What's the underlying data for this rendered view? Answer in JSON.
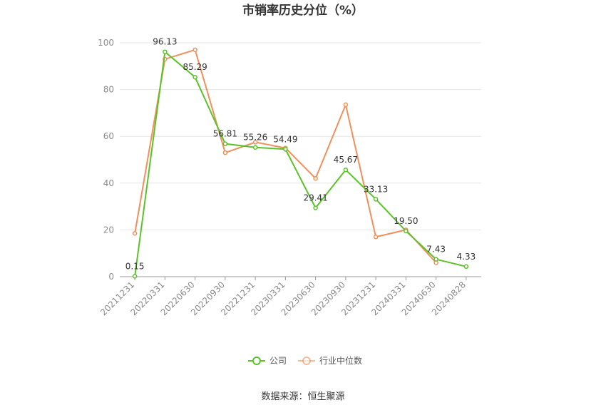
{
  "chart_data": {
    "type": "line",
    "title": "市销率历史分位（%）",
    "x": [
      "20211231",
      "20220331",
      "20220630",
      "20220930",
      "20221231",
      "20230331",
      "20230630",
      "20230930",
      "20231231",
      "20240331",
      "20240630",
      "20240828"
    ],
    "ylim": [
      0,
      100
    ],
    "yticks": [
      0,
      20,
      40,
      60,
      80,
      100
    ],
    "grid": true,
    "legend_position": "bottom",
    "series": [
      {
        "name": "公司",
        "color": "#5cc22a",
        "values": [
          0.15,
          96.13,
          85.29,
          56.81,
          55.26,
          54.49,
          29.41,
          45.67,
          33.13,
          19.5,
          7.43,
          4.33
        ],
        "labels": [
          "0.15",
          "96.13",
          "85.29",
          "56.81",
          "55.26",
          "54.49",
          "29.41",
          "45.67",
          "33.13",
          "19.50",
          "7.43",
          "4.33"
        ]
      },
      {
        "name": "行业中位数",
        "color": "#f0905a",
        "values": [
          18.5,
          93,
          97,
          53,
          57.5,
          55,
          42,
          73.5,
          17,
          20,
          6,
          null
        ]
      }
    ],
    "source": "数据来源：恒生聚源"
  }
}
